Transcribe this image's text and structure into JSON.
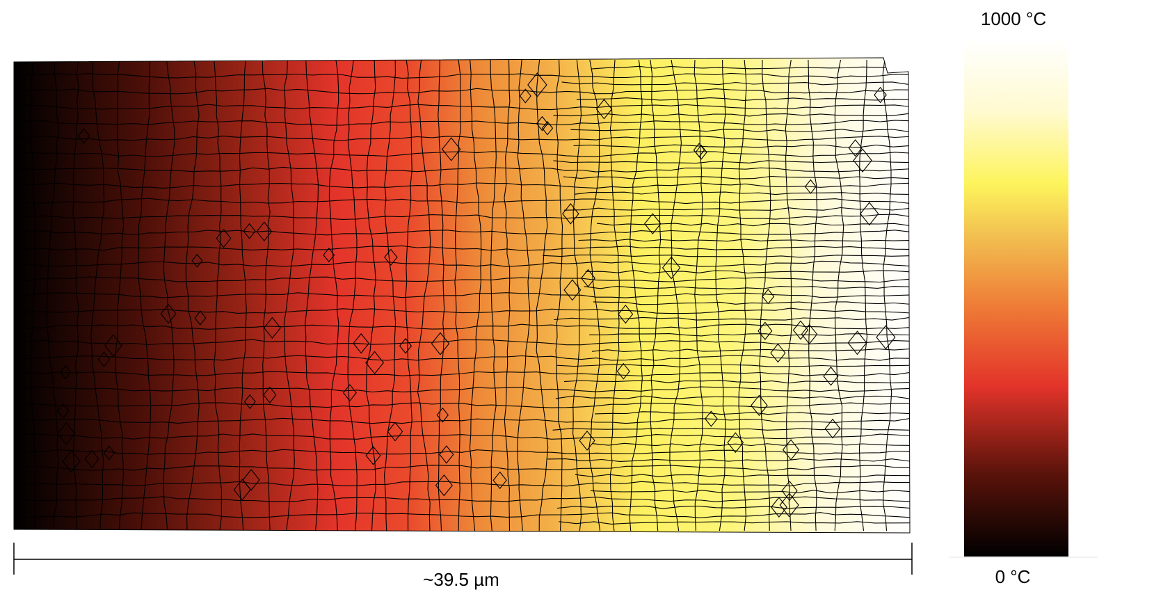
{
  "colorbar": {
    "max_label": "1000 °C",
    "min_label": "0 °C",
    "min_value": 0,
    "max_value": 1000,
    "unit": "°C",
    "stops": [
      "#000000",
      "#7a1a10",
      "#e8342a",
      "#f0a040",
      "#fdf45c",
      "#fffbe8",
      "#ffffff"
    ]
  },
  "scale_bar": {
    "label": "~39.5 µm"
  },
  "mesh": {
    "line_color": "#000000",
    "gradient_direction": "left-to-right",
    "cold_side": "left",
    "hot_side": "right"
  }
}
